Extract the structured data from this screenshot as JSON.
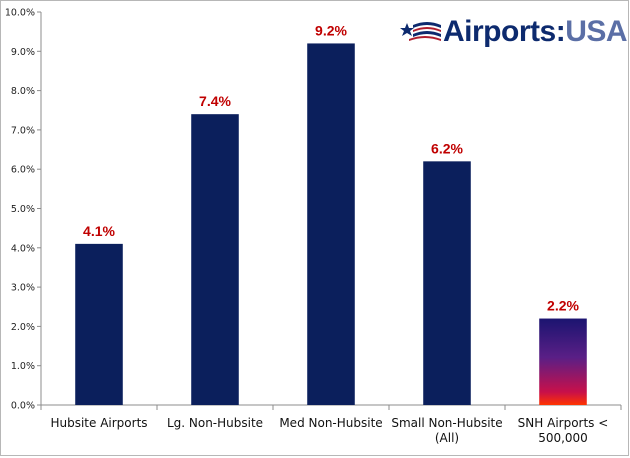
{
  "logo": {
    "airports": "Airports",
    "colon": ":",
    "usa": "USA"
  },
  "chart_data": {
    "type": "bar",
    "title": "",
    "xlabel": "",
    "ylabel": "",
    "ylim": [
      0,
      0.1
    ],
    "y_ticks": [
      "0.0%",
      "1.0%",
      "2.0%",
      "3.0%",
      "4.0%",
      "5.0%",
      "6.0%",
      "7.0%",
      "8.0%",
      "9.0%",
      "10.0%"
    ],
    "grid": false,
    "categories": [
      [
        "Hubsite Airports"
      ],
      [
        "Lg. Non-Hubsite"
      ],
      [
        "Med Non-Hubsite"
      ],
      [
        "Small Non-Hubsite",
        "(All)"
      ],
      [
        "SNH Airports <",
        "500,000"
      ]
    ],
    "values": [
      0.041,
      0.074,
      0.092,
      0.062,
      0.022
    ],
    "data_labels": [
      "4.1%",
      "7.4%",
      "9.2%",
      "6.2%",
      "2.2%"
    ],
    "bar_color": "#0b1f5c",
    "last_bar_gradient": [
      "#1b1470",
      "#5a1f86",
      "#c8104a",
      "#ff3300"
    ],
    "label_color": "#c00000"
  }
}
